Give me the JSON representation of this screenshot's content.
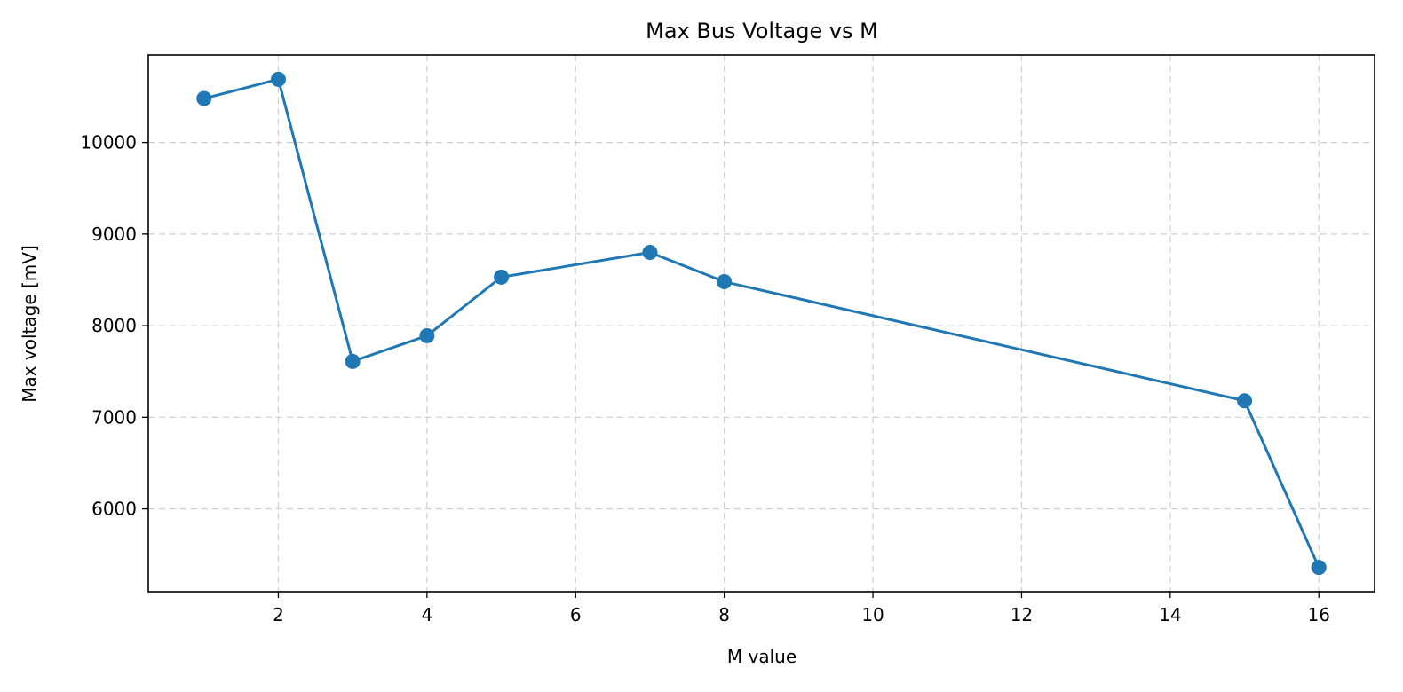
{
  "chart_data": {
    "type": "line",
    "title": "Max Bus Voltage vs M",
    "xlabel": "M value",
    "ylabel": "Max voltage [mV]",
    "x": [
      1,
      2,
      3,
      4,
      5,
      7,
      8,
      15,
      16
    ],
    "series": [
      {
        "values": [
          10480,
          10690,
          7610,
          7890,
          8530,
          8800,
          8480,
          7180,
          5360
        ],
        "color": "#1f77b4",
        "marker": "circle"
      }
    ],
    "xlim": [
      0.25,
      16.75
    ],
    "ylim": [
      5095,
      10955
    ],
    "xticks": [
      2,
      4,
      6,
      8,
      10,
      12,
      14,
      16
    ],
    "xtick_labels": [
      "2",
      "4",
      "6",
      "8",
      "10",
      "12",
      "14",
      "16"
    ],
    "yticks": [
      6000,
      7000,
      8000,
      9000,
      10000
    ],
    "ytick_labels": [
      "6000",
      "7000",
      "8000",
      "9000",
      "10000"
    ],
    "grid": true,
    "legend": false
  }
}
